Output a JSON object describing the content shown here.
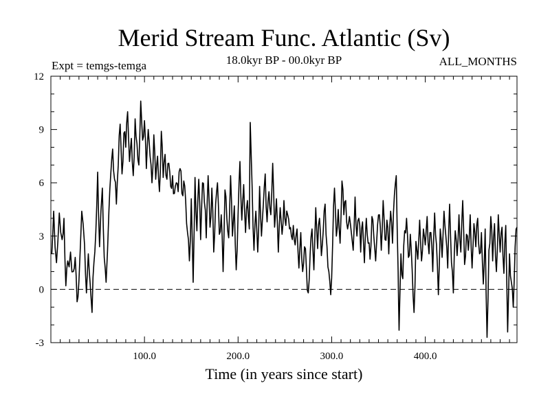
{
  "chart_data": {
    "type": "line",
    "title": "Merid Stream Func. Atlantic (Sv)",
    "subtitle_left": "Expt = temgs-temga",
    "subtitle_center": "18.0kyr BP - 00.0kyr BP",
    "subtitle_right": "ALL_MONTHS",
    "xlabel": "Time (in years since start)",
    "ylabel": "",
    "xlim": [
      0,
      498
    ],
    "ylim": [
      -3,
      12
    ],
    "xticks": [
      100,
      200,
      300,
      400
    ],
    "xtick_labels": [
      "100.0",
      "200.0",
      "300.0",
      "400.0"
    ],
    "yticks": [
      -3,
      0,
      3,
      6,
      9,
      12
    ],
    "ytick_labels": [
      "-3",
      "0",
      "3",
      "6",
      "9",
      "12"
    ],
    "reference_line": {
      "y": 0,
      "style": "dashed"
    },
    "series": [
      {
        "name": "Merid Stream Func. Atlantic",
        "anchors": [
          [
            1,
            2.0
          ],
          [
            3,
            4.4
          ],
          [
            6,
            1.5
          ],
          [
            9,
            4.3
          ],
          [
            12,
            2.8
          ],
          [
            14,
            4.0
          ],
          [
            16,
            0.2
          ],
          [
            18,
            1.6
          ],
          [
            21,
            2.1
          ],
          [
            24,
            1.0
          ],
          [
            26,
            1.8
          ],
          [
            28,
            -0.7
          ],
          [
            30,
            0.5
          ],
          [
            33,
            4.4
          ],
          [
            36,
            2.5
          ],
          [
            38,
            -0.2
          ],
          [
            40,
            2.0
          ],
          [
            42,
            0.3
          ],
          [
            44,
            -1.3
          ],
          [
            46,
            1.5
          ],
          [
            48,
            3.2
          ],
          [
            50,
            6.6
          ],
          [
            52,
            2.4
          ],
          [
            55,
            5.7
          ],
          [
            57,
            1.8
          ],
          [
            59,
            0.4
          ],
          [
            62,
            4.4
          ],
          [
            64,
            6.5
          ],
          [
            66,
            7.9
          ],
          [
            68,
            6.2
          ],
          [
            70,
            4.8
          ],
          [
            72,
            7.0
          ],
          [
            74,
            9.3
          ],
          [
            76,
            6.5
          ],
          [
            78,
            8.8
          ],
          [
            80,
            8.0
          ],
          [
            82,
            10.0
          ],
          [
            84,
            7.2
          ],
          [
            86,
            8.5
          ],
          [
            88,
            6.4
          ],
          [
            90,
            9.6
          ],
          [
            92,
            8.2
          ],
          [
            94,
            7.0
          ],
          [
            96,
            10.6
          ],
          [
            98,
            8.4
          ],
          [
            100,
            9.5
          ],
          [
            102,
            6.8
          ],
          [
            104,
            9.0
          ],
          [
            106,
            7.5
          ],
          [
            108,
            6.0
          ],
          [
            110,
            8.7
          ],
          [
            112,
            6.2
          ],
          [
            114,
            7.5
          ],
          [
            116,
            5.5
          ],
          [
            118,
            8.9
          ],
          [
            120,
            6.3
          ],
          [
            122,
            7.6
          ],
          [
            124,
            6.2
          ],
          [
            126,
            7.1
          ],
          [
            128,
            5.8
          ],
          [
            130,
            6.4
          ],
          [
            132,
            5.4
          ],
          [
            134,
            6.0
          ],
          [
            136,
            5.5
          ],
          [
            138,
            6.8
          ],
          [
            140,
            5.4
          ],
          [
            142,
            6.1
          ],
          [
            144,
            5.0
          ],
          [
            146,
            3.2
          ],
          [
            148,
            1.6
          ],
          [
            150,
            5.1
          ],
          [
            152,
            0.4
          ],
          [
            154,
            6.3
          ],
          [
            156,
            3.3
          ],
          [
            158,
            6.2
          ],
          [
            160,
            2.8
          ],
          [
            162,
            6.0
          ],
          [
            164,
            4.9
          ],
          [
            166,
            2.9
          ],
          [
            168,
            6.4
          ],
          [
            170,
            3.5
          ],
          [
            172,
            5.7
          ],
          [
            174,
            2.1
          ],
          [
            176,
            4.8
          ],
          [
            178,
            6.0
          ],
          [
            180,
            3.1
          ],
          [
            182,
            4.2
          ],
          [
            184,
            1.0
          ],
          [
            186,
            5.6
          ],
          [
            188,
            4.0
          ],
          [
            190,
            2.9
          ],
          [
            192,
            6.4
          ],
          [
            194,
            3.0
          ],
          [
            196,
            4.7
          ],
          [
            198,
            1.1
          ],
          [
            200,
            4.2
          ],
          [
            202,
            7.2
          ],
          [
            204,
            3.9
          ],
          [
            206,
            5.9
          ],
          [
            208,
            3.2
          ],
          [
            210,
            5.0
          ],
          [
            212,
            3.4
          ],
          [
            213,
            9.4
          ],
          [
            215,
            5.8
          ],
          [
            217,
            2.2
          ],
          [
            219,
            4.4
          ],
          [
            221,
            2.1
          ],
          [
            223,
            5.8
          ],
          [
            225,
            3.0
          ],
          [
            227,
            4.8
          ],
          [
            229,
            6.5
          ],
          [
            231,
            3.8
          ],
          [
            233,
            5.5
          ],
          [
            235,
            4.2
          ],
          [
            237,
            7.1
          ],
          [
            239,
            3.5
          ],
          [
            241,
            5.1
          ],
          [
            243,
            2.1
          ],
          [
            245,
            4.6
          ],
          [
            247,
            3.1
          ],
          [
            249,
            5.0
          ],
          [
            251,
            3.6
          ],
          [
            253,
            4.2
          ],
          [
            255,
            3.4
          ],
          [
            257,
            3.0
          ],
          [
            259,
            3.6
          ],
          [
            261,
            2.5
          ],
          [
            263,
            3.4
          ],
          [
            265,
            1.2
          ],
          [
            267,
            3.2
          ],
          [
            269,
            1.0
          ],
          [
            271,
            2.4
          ],
          [
            273,
            1.2
          ],
          [
            275,
            -0.2
          ],
          [
            277,
            2.0
          ],
          [
            279,
            3.4
          ],
          [
            281,
            1.1
          ],
          [
            283,
            4.6
          ],
          [
            285,
            2.3
          ],
          [
            287,
            4.0
          ],
          [
            289,
            1.9
          ],
          [
            291,
            3.3
          ],
          [
            293,
            4.8
          ],
          [
            295,
            2.4
          ],
          [
            297,
            1.0
          ],
          [
            299,
            -0.3
          ],
          [
            301,
            2.5
          ],
          [
            303,
            5.7
          ],
          [
            305,
            3.0
          ],
          [
            307,
            4.5
          ],
          [
            309,
            2.6
          ],
          [
            311,
            6.1
          ],
          [
            313,
            4.2
          ],
          [
            315,
            5.0
          ],
          [
            317,
            3.4
          ],
          [
            319,
            4.1
          ],
          [
            321,
            3.2
          ],
          [
            323,
            2.2
          ],
          [
            325,
            5.2
          ],
          [
            327,
            3.0
          ],
          [
            329,
            4.0
          ],
          [
            331,
            2.1
          ],
          [
            333,
            3.8
          ],
          [
            335,
            1.5
          ],
          [
            337,
            4.0
          ],
          [
            339,
            2.6
          ],
          [
            341,
            1.7
          ],
          [
            343,
            4.1
          ],
          [
            345,
            3.0
          ],
          [
            347,
            1.6
          ],
          [
            349,
            3.6
          ],
          [
            351,
            4.2
          ],
          [
            353,
            2.2
          ],
          [
            355,
            5.0
          ],
          [
            357,
            2.8
          ],
          [
            359,
            3.9
          ],
          [
            361,
            2.0
          ],
          [
            363,
            4.4
          ],
          [
            365,
            2.6
          ],
          [
            367,
            5.3
          ],
          [
            369,
            6.4
          ],
          [
            371,
            1.0
          ],
          [
            372,
            -2.3
          ],
          [
            374,
            2.0
          ],
          [
            376,
            0.6
          ],
          [
            378,
            3.3
          ],
          [
            380,
            4.0
          ],
          [
            382,
            1.8
          ],
          [
            384,
            3.1
          ],
          [
            386,
            1.1
          ],
          [
            388,
            -1.3
          ],
          [
            390,
            2.7
          ],
          [
            392,
            1.7
          ],
          [
            394,
            3.9
          ],
          [
            396,
            1.6
          ],
          [
            398,
            3.4
          ],
          [
            400,
            2.5
          ],
          [
            402,
            4.1
          ],
          [
            404,
            2.0
          ],
          [
            406,
            3.2
          ],
          [
            408,
            1.0
          ],
          [
            410,
            4.3
          ],
          [
            412,
            2.5
          ],
          [
            414,
            -0.3
          ],
          [
            416,
            3.4
          ],
          [
            418,
            1.8
          ],
          [
            420,
            4.4
          ],
          [
            422,
            3.0
          ],
          [
            424,
            1.2
          ],
          [
            426,
            4.8
          ],
          [
            428,
            1.5
          ],
          [
            430,
            -0.2
          ],
          [
            432,
            3.3
          ],
          [
            434,
            1.9
          ],
          [
            436,
            4.2
          ],
          [
            438,
            2.1
          ],
          [
            440,
            5.0
          ],
          [
            442,
            1.4
          ],
          [
            444,
            3.1
          ],
          [
            446,
            2.2
          ],
          [
            448,
            4.2
          ],
          [
            450,
            1.2
          ],
          [
            452,
            3.7
          ],
          [
            454,
            2.4
          ],
          [
            456,
            4.0
          ],
          [
            458,
            2.0
          ],
          [
            460,
            3.2
          ],
          [
            462,
            0.3
          ],
          [
            464,
            3.4
          ],
          [
            466,
            -2.7
          ],
          [
            468,
            2.2
          ],
          [
            470,
            4.1
          ],
          [
            472,
            1.6
          ],
          [
            474,
            3.7
          ],
          [
            476,
            1.0
          ],
          [
            478,
            4.2
          ],
          [
            480,
            2.1
          ],
          [
            482,
            3.5
          ],
          [
            484,
            0.9
          ],
          [
            486,
            3.6
          ],
          [
            488,
            -2.4
          ],
          [
            490,
            2.0
          ],
          [
            492,
            0.4
          ],
          [
            494,
            -1.0
          ],
          [
            496,
            2.4
          ],
          [
            498,
            3.5
          ]
        ],
        "color": "#000000"
      }
    ]
  }
}
